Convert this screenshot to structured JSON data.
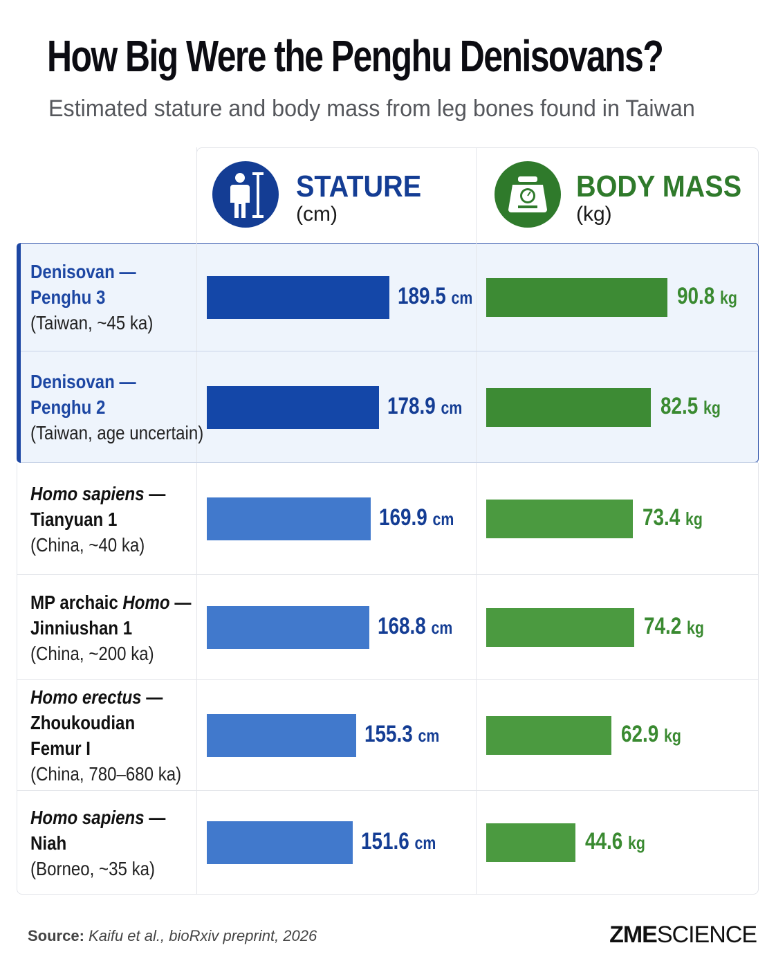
{
  "title": "How Big Were the Penghu Denisovans?",
  "subtitle": "Estimated stature and body mass from leg bones found in Taiwan",
  "headers": {
    "stature": {
      "title": "STATURE",
      "unit": "(cm)",
      "icon": "person-height-icon"
    },
    "mass": {
      "title": "BODY MASS",
      "unit": "(kg)",
      "icon": "scale-icon"
    }
  },
  "colors": {
    "stature_highlight": "#1447a8",
    "stature_other": "#4179cc",
    "mass_highlight": "#3d8b34",
    "mass_other": "#4b9a40",
    "stature_text": "#143d94",
    "mass_text": "#3a8a31",
    "highlight_bg": "#eef4fc"
  },
  "rows": [
    {
      "line1": "Denisovan —",
      "line2": "Penghu 3",
      "line3": "(Taiwan, ~45 ka)",
      "highlight": true,
      "stature_label": "189.5",
      "mass_label": "90.8"
    },
    {
      "line1": "Denisovan —",
      "line2": "Penghu 2",
      "line3": "(Taiwan, age uncertain)",
      "highlight": true,
      "stature_label": "178.9",
      "mass_label": "82.5"
    },
    {
      "line1_italic": "Homo sapiens",
      "line1_rest": " —",
      "line2": "Tianyuan 1",
      "line3": "(China, ~40 ka)",
      "highlight": false,
      "stature_label": "169.9",
      "mass_label": "73.4"
    },
    {
      "line1_plain": "MP archaic ",
      "line1_italic": "Homo",
      "line1_rest": " —",
      "line2": "Jinniushan 1",
      "line3": "(China, ~200 ka)",
      "highlight": false,
      "stature_label": "168.8",
      "mass_label": "74.2"
    },
    {
      "line1_italic": "Homo erectus",
      "line1_rest": " —",
      "line2": "Zhoukoudian",
      "line2b": "Femur I",
      "line3": "(China, 780–680 ka)",
      "highlight": false,
      "stature_label": "155.3",
      "mass_label": "62.9"
    },
    {
      "line1_italic": "Homo sapiens",
      "line1_rest": " —",
      "line2": "Niah",
      "line3": "(Borneo, ~35 ka)",
      "highlight": false,
      "stature_label": "151.6",
      "mass_label": "44.6"
    }
  ],
  "units": {
    "stature": "cm",
    "mass": "kg"
  },
  "footer": {
    "source_label": "Source:",
    "source_text": "Kaifu et al., bioRxiv preprint, 2026",
    "brand_bold": "ZME",
    "brand_rest": "SCIENCE"
  },
  "chart_data": {
    "type": "bar",
    "title": "How Big Were the Penghu Denisovans?",
    "subtitle": "Estimated stature and body mass from leg bones found in Taiwan",
    "categories": [
      "Denisovan — Penghu 3 (Taiwan, ~45 ka)",
      "Denisovan — Penghu 2 (Taiwan, age uncertain)",
      "Homo sapiens — Tianyuan 1 (China, ~40 ka)",
      "MP archaic Homo — Jinniushan 1 (China, ~200 ka)",
      "Homo erectus — Zhoukoudian Femur I (China, 780–680 ka)",
      "Homo sapiens — Niah (Borneo, ~35 ka)"
    ],
    "series": [
      {
        "name": "STATURE",
        "values": [
          189.5,
          178.9,
          169.9,
          168.8,
          155.3,
          151.6
        ]
      },
      {
        "name": "BODY MASS",
        "values": [
          90.8,
          82.5,
          73.4,
          74.2,
          62.9,
          44.6
        ]
      }
    ],
    "orientation": "horizontal",
    "grid": false,
    "legend": "column headers"
  }
}
